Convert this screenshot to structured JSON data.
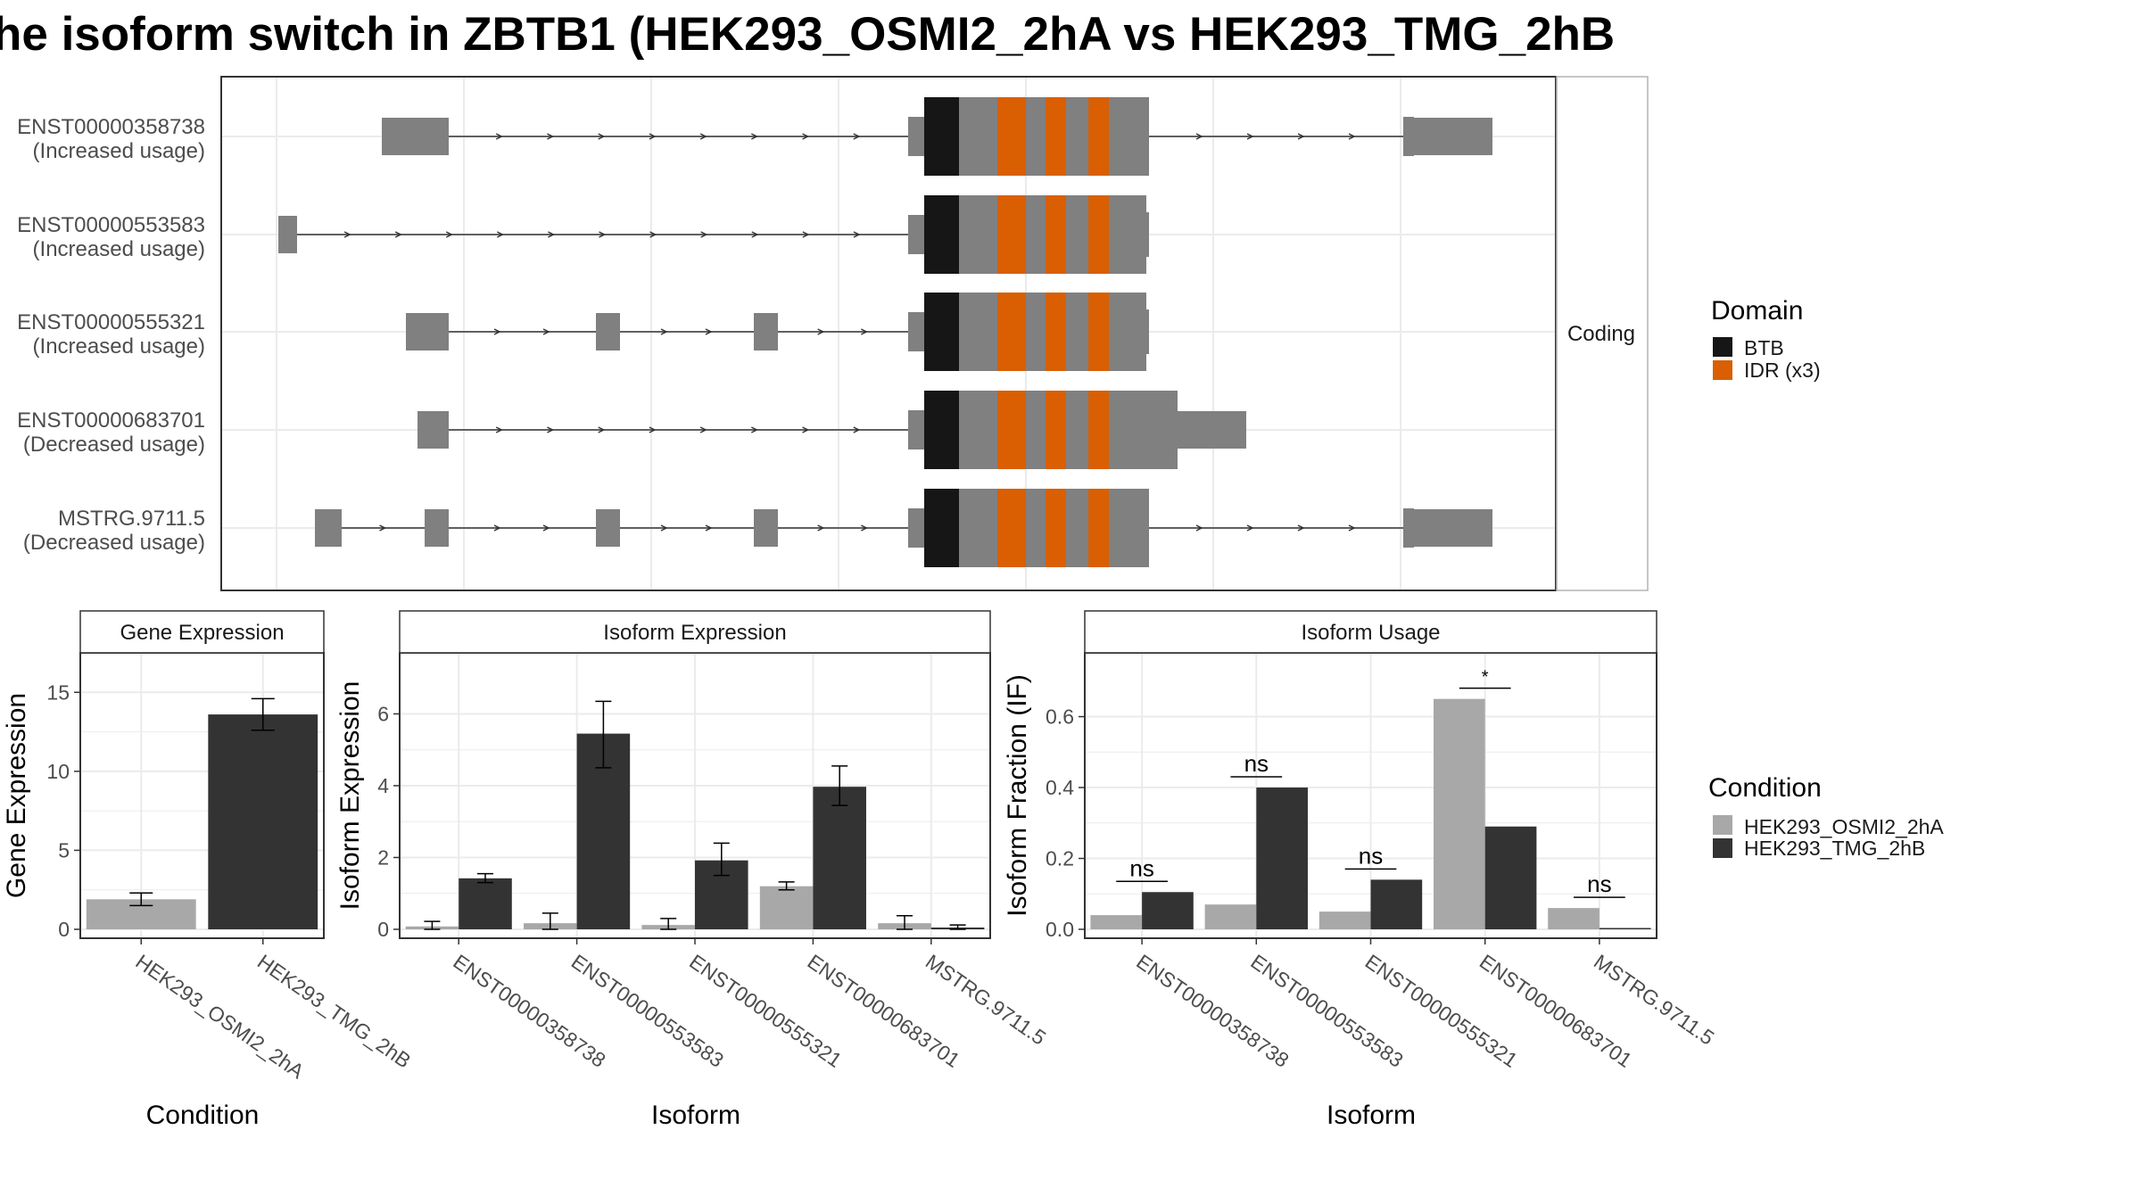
{
  "title": "he isoform switch in ZBTB1 (HEK293_OSMI2_2hA vs HEK293_TMG_2hB",
  "colors": {
    "exon": "#808080",
    "btb": "#161616",
    "idr": "#D95F02",
    "cond_a": "#A8A8A8",
    "cond_b": "#333333",
    "strip_bg": "#ffffff",
    "grid": "#EBEBEB",
    "intron": "#333333"
  },
  "structure_panel": {
    "facet_label": "Coding",
    "transcripts": [
      {
        "id": "ENST00000358738",
        "status": "(Increased usage)"
      },
      {
        "id": "ENST00000553583",
        "status": "(Increased usage)"
      },
      {
        "id": "ENST00000555321",
        "status": "(Increased usage)"
      },
      {
        "id": "ENST00000683701",
        "status": "(Decreased usage)"
      },
      {
        "id": "MSTRG.9711.5",
        "status": "(Decreased usage)"
      }
    ]
  },
  "domain_legend": {
    "title": "Domain",
    "items": [
      {
        "label": "BTB",
        "color": "#161616"
      },
      {
        "label": "IDR (x3)",
        "color": "#D95F02"
      }
    ]
  },
  "condition_legend": {
    "title": "Condition",
    "items": [
      {
        "label": "HEK293_OSMI2_2hA",
        "color": "#A8A8A8"
      },
      {
        "label": "HEK293_TMG_2hB",
        "color": "#333333"
      }
    ]
  },
  "chart_data": [
    {
      "type": "bar",
      "strip": "Gene Expression",
      "ylabel": "Gene Expression",
      "xlabel": "Condition",
      "ylim": [
        0,
        17.5
      ],
      "yticks": [
        0,
        5,
        10,
        15
      ],
      "categories": [
        "HEK293_OSMI2_2hA",
        "HEK293_TMG_2hB"
      ],
      "values": [
        1.9,
        13.6
      ],
      "errors": [
        [
          1.5,
          2.3
        ],
        [
          12.6,
          14.6
        ]
      ]
    },
    {
      "type": "bar",
      "strip": "Isoform Expression",
      "ylabel": "Isoform Expression",
      "xlabel": "Isoform",
      "ylim": [
        0,
        7.7
      ],
      "yticks": [
        0,
        2,
        4,
        6
      ],
      "categories": [
        "ENST00000358738",
        "ENST00000553583",
        "ENST00000555321",
        "ENST00000683701",
        "MSTRG.9711.5"
      ],
      "series": [
        {
          "name": "HEK293_OSMI2_2hA",
          "values": [
            0.08,
            0.17,
            0.12,
            1.2,
            0.17
          ],
          "errors": [
            [
              0.0,
              0.22
            ],
            [
              0.0,
              0.45
            ],
            [
              0.0,
              0.3
            ],
            [
              1.1,
              1.32
            ],
            [
              0.0,
              0.38
            ]
          ]
        },
        {
          "name": "HEK293_TMG_2hB",
          "values": [
            1.42,
            5.45,
            1.92,
            3.97,
            0.05
          ],
          "errors": [
            [
              1.3,
              1.55
            ],
            [
              4.5,
              6.35
            ],
            [
              1.5,
              2.4
            ],
            [
              3.45,
              4.55
            ],
            [
              0.0,
              0.12
            ]
          ]
        }
      ]
    },
    {
      "type": "bar",
      "strip": "Isoform Usage",
      "ylabel": "Isoform Fraction (IF)",
      "xlabel": "Isoform",
      "ylim": [
        0,
        0.78
      ],
      "yticks": [
        0,
        0.2,
        0.4,
        0.6
      ],
      "ytick_labels": [
        "0.0",
        "0.2",
        "0.4",
        "0.6"
      ],
      "categories": [
        "ENST00000358738",
        "ENST00000553583",
        "ENST00000555321",
        "ENST00000683701",
        "MSTRG.9711.5"
      ],
      "series": [
        {
          "name": "HEK293_OSMI2_2hA",
          "values": [
            0.04,
            0.07,
            0.05,
            0.65,
            0.06
          ]
        },
        {
          "name": "HEK293_TMG_2hB",
          "values": [
            0.105,
            0.4,
            0.14,
            0.29,
            0.0
          ]
        }
      ],
      "significance": [
        "ns",
        "ns",
        "ns",
        "*",
        "ns"
      ]
    }
  ]
}
